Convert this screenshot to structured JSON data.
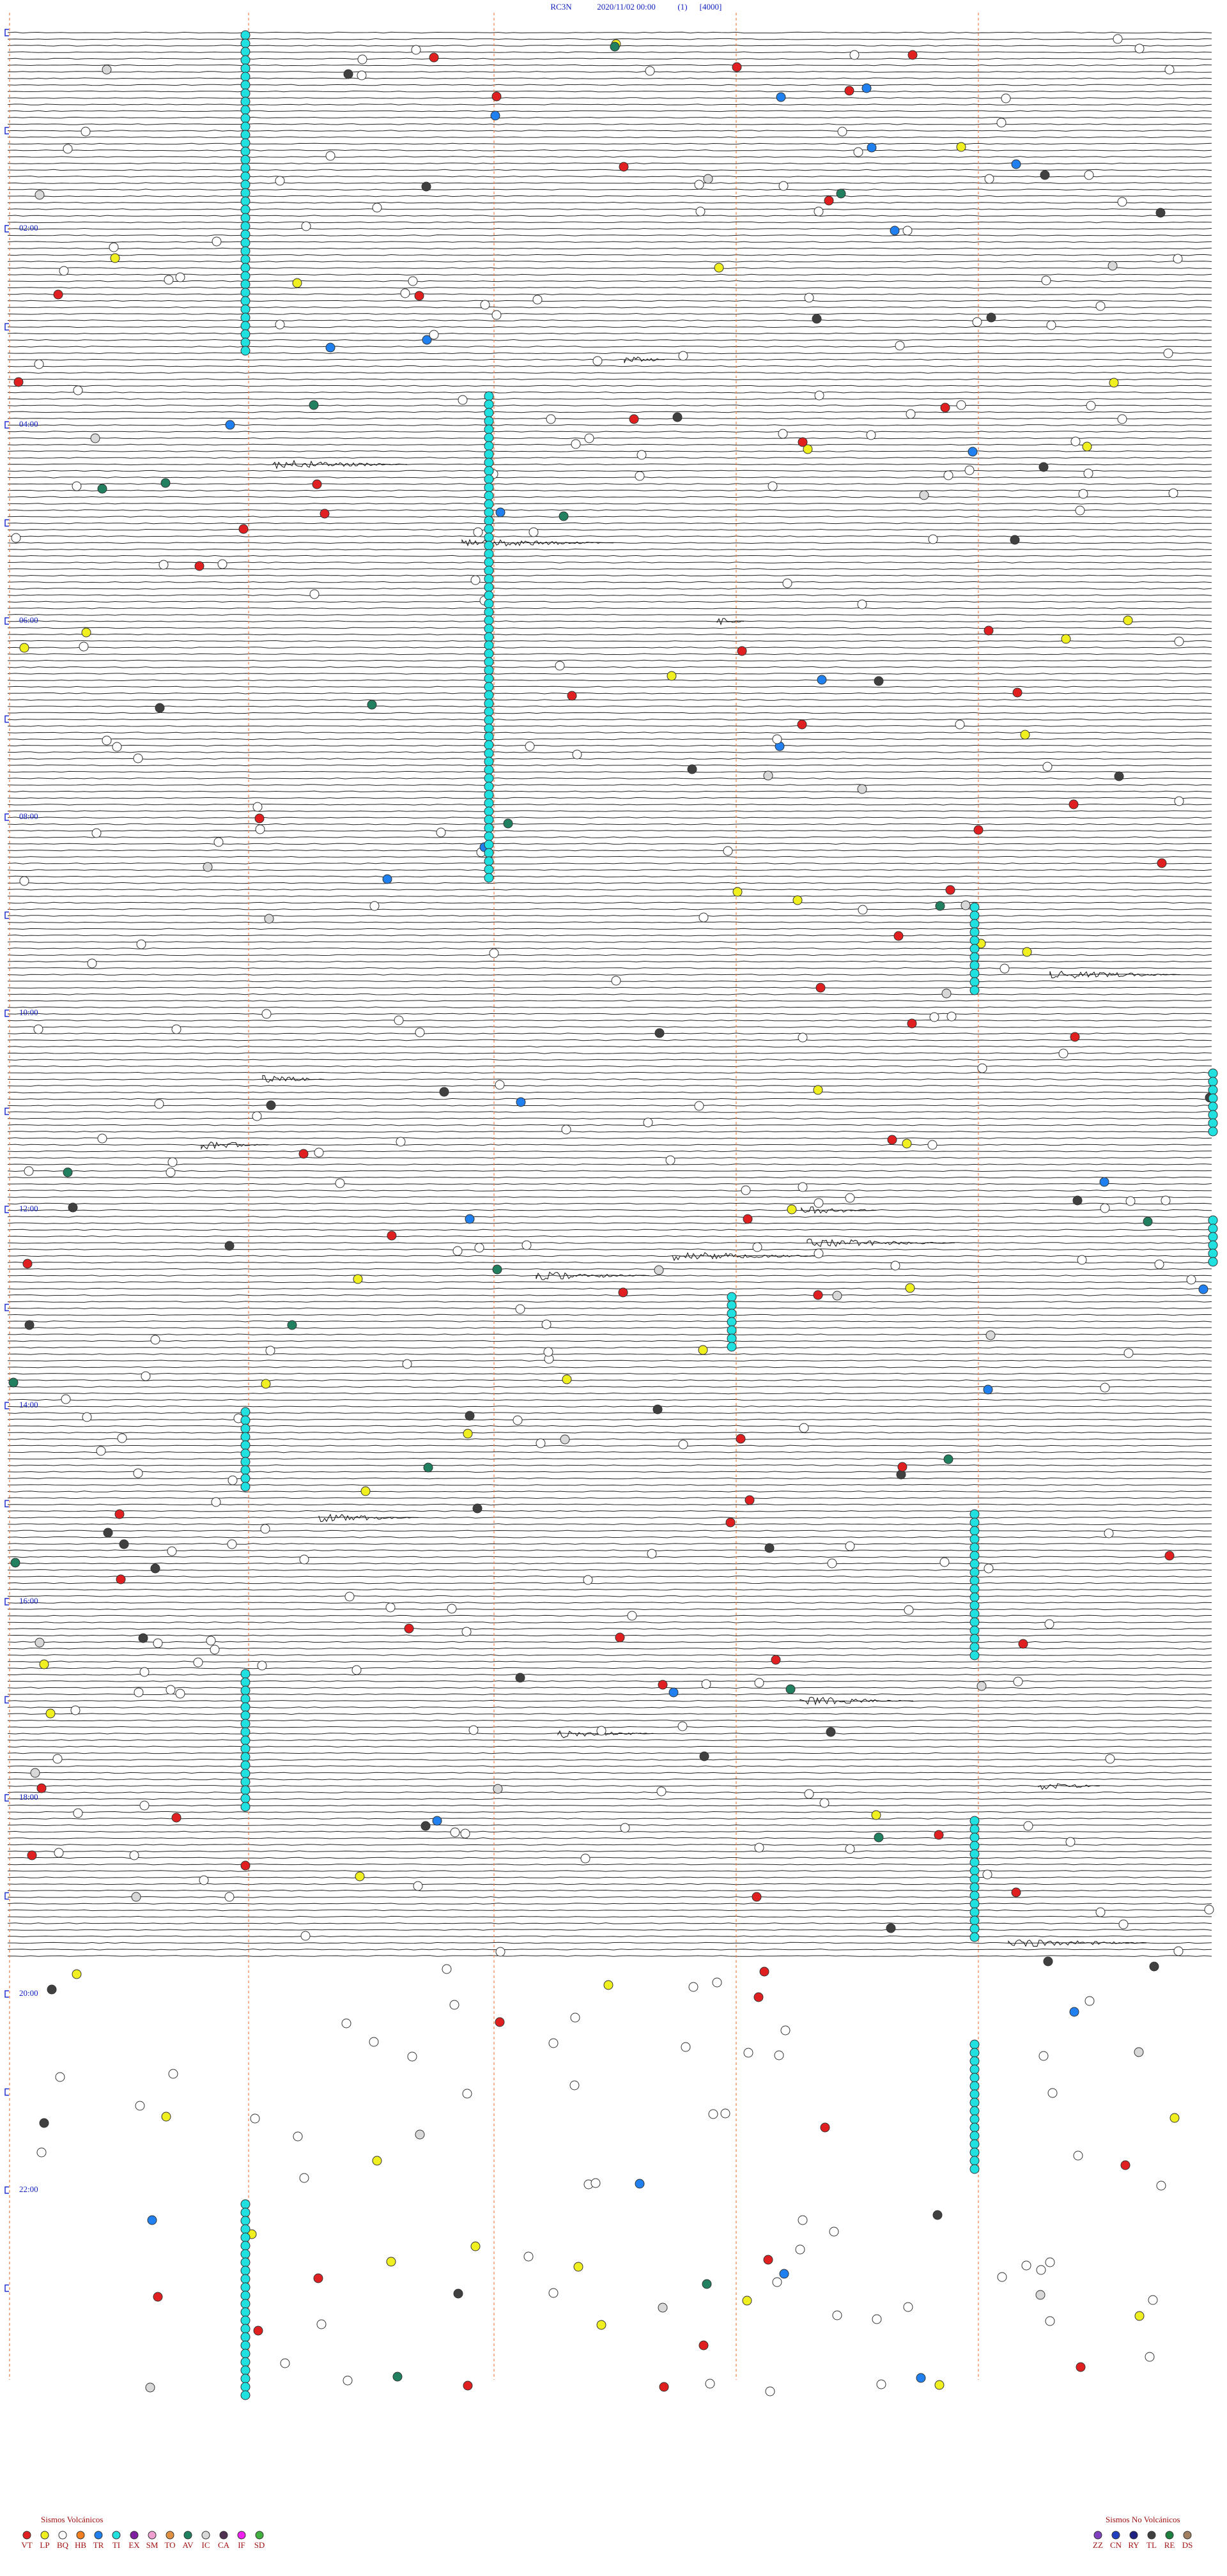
{
  "header": {
    "station": "RC3N",
    "datetime": "2020/11/02 00:00",
    "channel": "(1)",
    "scale": "[4000]"
  },
  "time_labels": [
    "02:00",
    "04:00",
    "06:00",
    "08:00",
    "10:00",
    "12:00",
    "14:00",
    "16:00",
    "18:00",
    "20:00",
    "22:00"
  ],
  "legend": {
    "volcanic": {
      "title": "Sismos Volcánicos",
      "items": [
        {
          "label": "VT",
          "color": "#e02020"
        },
        {
          "label": "LP",
          "color": "#f0f020"
        },
        {
          "label": "BQ",
          "color": "#ffffff"
        },
        {
          "label": "HB",
          "color": "#f08020"
        },
        {
          "label": "TR",
          "color": "#2080f0"
        },
        {
          "label": "TI",
          "color": "#20e0e0"
        },
        {
          "label": "EX",
          "color": "#8020a0"
        },
        {
          "label": "SM",
          "color": "#f0a0d0"
        },
        {
          "label": "TO",
          "color": "#e09040"
        },
        {
          "label": "AV",
          "color": "#208060"
        },
        {
          "label": "IC",
          "color": "#d8d8d8"
        },
        {
          "label": "CA",
          "color": "#503050"
        },
        {
          "label": "IF",
          "color": "#f020f0"
        },
        {
          "label": "SD",
          "color": "#40b040"
        }
      ]
    },
    "non_volcanic": {
      "title": "Sismos No Volcánicos",
      "items": [
        {
          "label": "ZZ",
          "color": "#8040c0"
        },
        {
          "label": "CN",
          "color": "#2040c0"
        },
        {
          "label": "RY",
          "color": "#202080"
        },
        {
          "label": "TL",
          "color": "#404040"
        },
        {
          "label": "RE",
          "color": "#208040"
        },
        {
          "label": "DS",
          "color": "#a08060"
        }
      ]
    }
  }
}
